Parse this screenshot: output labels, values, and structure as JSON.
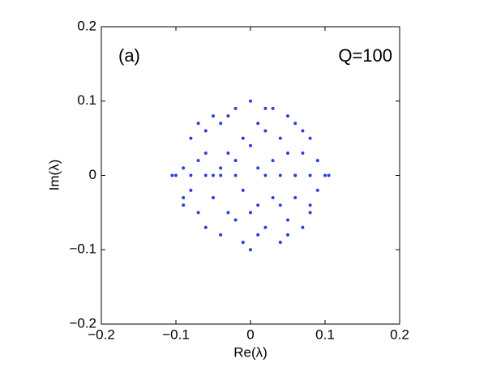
{
  "chart_data": {
    "type": "scatter",
    "x_label": "Re(λ)",
    "y_label": "Im(λ)",
    "annotations": [
      "(a)",
      "Q=100"
    ],
    "xlim": [
      -0.2,
      0.2
    ],
    "ylim": [
      -0.2,
      0.2
    ],
    "xticks": [
      {
        "value": -0.2,
        "label": "−0.2"
      },
      {
        "value": -0.1,
        "label": "−0.1"
      },
      0,
      0.1,
      0.2
    ],
    "yticks": [
      {
        "value": -0.2,
        "label": "−0.2"
      },
      {
        "value": -0.1,
        "label": "−0.1"
      },
      0,
      0.1,
      0.2
    ],
    "grid": false,
    "series": [
      {
        "color": "#2b3fe0",
        "x": [
          0.05,
          -0.07,
          0.01,
          -0.03,
          0.08,
          -0.09,
          0.02,
          -0.04,
          0.06,
          -0.06,
          0.03,
          0.0,
          -0.01,
          0.09,
          -0.08,
          0.04,
          -0.02,
          0.07,
          -0.05,
          0.01,
          0.05,
          -0.03,
          0.02,
          -0.07,
          0.08,
          -0.01,
          0.06,
          -0.04,
          0.03,
          -0.09,
          0.0,
          0.04,
          -0.06,
          0.07,
          -0.02,
          0.01,
          -0.08,
          0.09,
          -0.03,
          0.05,
          -0.05,
          0.02,
          -0.01,
          0.06,
          -0.07,
          0.03,
          -0.04,
          0.0,
          0.08,
          -0.09,
          0.07,
          -0.02,
          0.04,
          -0.06,
          0.01,
          0.1,
          -0.1,
          0.0,
          -0.05,
          0.05,
          -0.105,
          -0.08,
          -0.06,
          -0.04,
          -0.02,
          0.02,
          0.04,
          0.06,
          0.08,
          0.105
        ],
        "y": [
          0.03,
          0.02,
          -0.08,
          -0.05,
          -0.04,
          -0.03,
          0.09,
          0.07,
          0.07,
          -0.07,
          -0.03,
          0.04,
          -0.02,
          0.02,
          0.05,
          -0.09,
          0.09,
          -0.07,
          0.0,
          0.01,
          -0.06,
          0.03,
          0.06,
          -0.05,
          0.05,
          -0.09,
          0.0,
          -0.08,
          0.02,
          0.01,
          -0.05,
          0.05,
          0.06,
          0.03,
          -0.06,
          0.07,
          -0.02,
          -0.02,
          0.08,
          0.08,
          -0.03,
          -0.07,
          0.05,
          -0.03,
          0.07,
          0.09,
          0.01,
          -0.1,
          -0.05,
          -0.04,
          0.06,
          0.02,
          -0.04,
          0.03,
          -0.04,
          0.0,
          0.0,
          0.1,
          0.08,
          -0.08,
          0,
          0,
          0,
          0,
          0,
          0,
          0,
          0,
          0,
          0
        ]
      }
    ]
  }
}
